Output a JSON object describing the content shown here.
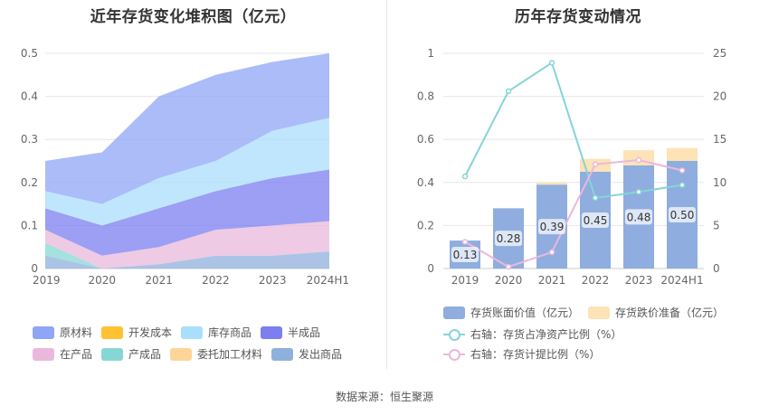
{
  "left": {
    "title": "近年存货变化堆积图（亿元）",
    "legend": [
      {
        "label": "原材料",
        "color": "#8fa5f5"
      },
      {
        "label": "开发成本",
        "color": "#ffc233"
      },
      {
        "label": "库存商品",
        "color": "#a9defc"
      },
      {
        "label": "半成品",
        "color": "#7b7ff0"
      },
      {
        "label": "在产品",
        "color": "#eab8dc"
      },
      {
        "label": "产成品",
        "color": "#86d7d4"
      },
      {
        "label": "委托加工材料",
        "color": "#fdd599"
      },
      {
        "label": "发出商品",
        "color": "#8fb0dc"
      }
    ]
  },
  "right": {
    "title": "历年存货变动情况",
    "legend": [
      {
        "label": "存货账面价值（亿元）",
        "kind": "bar",
        "color": "#8fadde"
      },
      {
        "label": "存货跌价准备（亿元）",
        "kind": "bar",
        "color": "#fde3b6"
      },
      {
        "label": "右轴：存货占净资产比例（%）",
        "kind": "line",
        "color": "#86d4d8"
      },
      {
        "label": "右轴：存货计提比例（%）",
        "kind": "line",
        "color": "#eab8dc"
      }
    ]
  },
  "source": "数据来源：恒生聚源",
  "chart_data": [
    {
      "type": "area",
      "stacked": true,
      "title": "近年存货变化堆积图（亿元）",
      "categories": [
        "2019",
        "2020",
        "2021",
        "2022",
        "2023",
        "2024H1"
      ],
      "ylim": [
        0,
        0.5
      ],
      "yticks": [
        "0",
        "0.1",
        "0.2",
        "0.3",
        "0.4",
        "0.5"
      ],
      "grid": true,
      "legend_position": "bottom",
      "series": [
        {
          "name": "发出商品",
          "color": "#8fb0dc",
          "values": [
            0.03,
            0.0,
            0.01,
            0.03,
            0.03,
            0.04
          ]
        },
        {
          "name": "产成品",
          "color": "#86d7d4",
          "values": [
            0.03,
            0.0,
            0.0,
            0.0,
            0.0,
            0.0
          ]
        },
        {
          "name": "在产品",
          "color": "#eab8dc",
          "values": [
            0.03,
            0.03,
            0.04,
            0.06,
            0.07,
            0.07
          ]
        },
        {
          "name": "半成品",
          "color": "#7b7ff0",
          "values": [
            0.05,
            0.07,
            0.09,
            0.09,
            0.11,
            0.12
          ]
        },
        {
          "name": "库存商品",
          "color": "#a9defc",
          "values": [
            0.04,
            0.05,
            0.07,
            0.07,
            0.11,
            0.12
          ]
        },
        {
          "name": "原材料",
          "color": "#8fa5f5",
          "values": [
            0.07,
            0.12,
            0.19,
            0.2,
            0.16,
            0.15
          ]
        }
      ]
    },
    {
      "type": "bar",
      "title": "历年存货变动情况",
      "categories": [
        "2019",
        "2020",
        "2021",
        "2022",
        "2023",
        "2024H1"
      ],
      "ylim": [
        0,
        1
      ],
      "yticks": [
        "0",
        "0.2",
        "0.4",
        "0.6",
        "0.8",
        "1"
      ],
      "y2lim": [
        0,
        25
      ],
      "y2ticks": [
        "0",
        "5",
        "10",
        "15",
        "20",
        "25"
      ],
      "grid": true,
      "legend_position": "bottom",
      "series": [
        {
          "name": "存货账面价值（亿元）",
          "type": "bar",
          "color": "#8fadde",
          "values": [
            0.13,
            0.28,
            0.39,
            0.45,
            0.48,
            0.5
          ],
          "labels": [
            "0.13",
            "0.28",
            "0.39",
            "0.45",
            "0.48",
            "0.50"
          ]
        },
        {
          "name": "存货跌价准备（亿元）",
          "type": "bar",
          "color": "#fde3b6",
          "values": [
            0.0,
            0.0,
            0.01,
            0.06,
            0.07,
            0.06
          ]
        },
        {
          "name": "右轴：存货占净资产比例（%）",
          "type": "line",
          "axis": "right",
          "color": "#86d4d8",
          "values": [
            10.7,
            20.6,
            23.9,
            8.2,
            8.9,
            9.7
          ]
        },
        {
          "name": "右轴：存货计提比例（%）",
          "type": "line",
          "axis": "right",
          "color": "#eab8dc",
          "values": [
            3.1,
            0.2,
            1.9,
            12.1,
            12.6,
            11.4
          ]
        }
      ]
    }
  ]
}
